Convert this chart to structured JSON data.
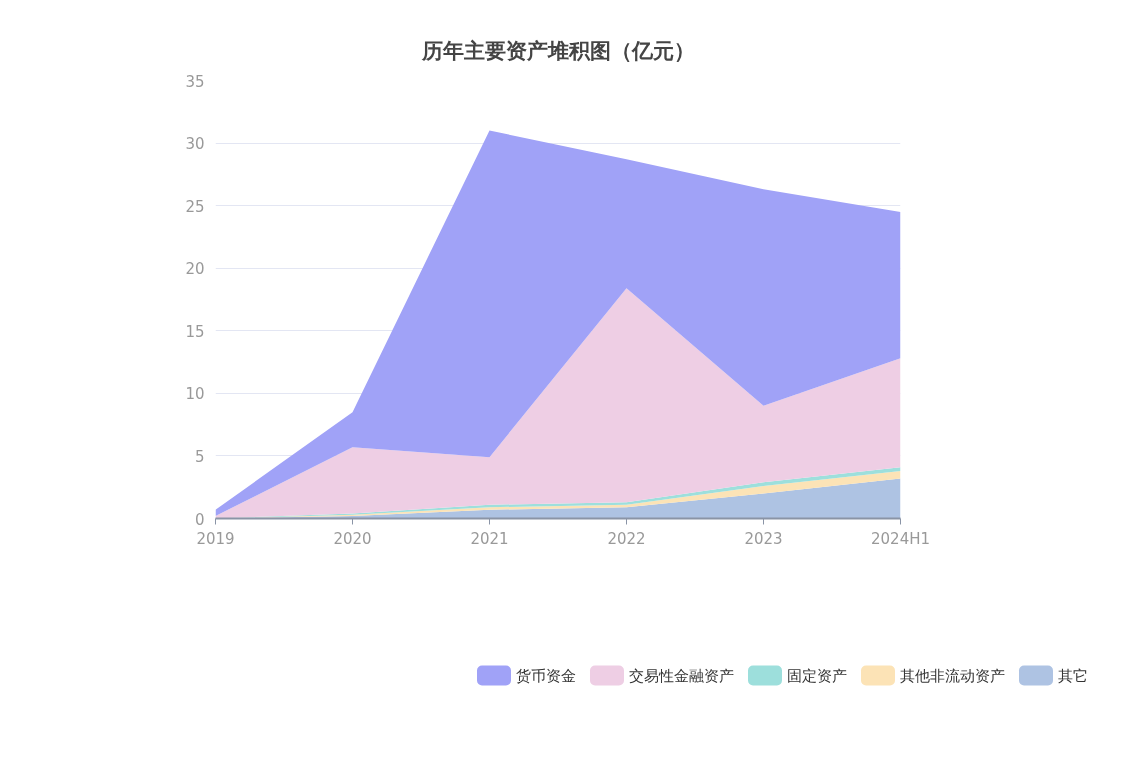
{
  "chart_data": {
    "type": "area",
    "stacked": true,
    "title": "历年主要资产堆积图（亿元）",
    "categories": [
      "2019",
      "2020",
      "2021",
      "2022",
      "2023",
      "2024H1"
    ],
    "series": [
      {
        "name": "其它",
        "color": "#aec3e3",
        "values": [
          0,
          0.2,
          0.7,
          0.9,
          2.0,
          3.2
        ]
      },
      {
        "name": "其他非流动资产",
        "color": "#fce3b6",
        "values": [
          0,
          0.1,
          0.2,
          0.2,
          0.6,
          0.6
        ]
      },
      {
        "name": "固定资产",
        "color": "#9ddfdc",
        "values": [
          0,
          0.1,
          0.2,
          0.2,
          0.3,
          0.3
        ]
      },
      {
        "name": "交易性金融资产",
        "color": "#eecee4",
        "values": [
          0.2,
          5.3,
          3.8,
          17.1,
          6.1,
          8.7
        ]
      },
      {
        "name": "货币资金",
        "color": "#a0a2f7",
        "values": [
          0.5,
          2.8,
          26.1,
          10.3,
          17.3,
          11.7
        ]
      }
    ],
    "ylim": [
      0,
      35
    ],
    "yticks": [
      0,
      5,
      10,
      15,
      20,
      25,
      30,
      35
    ],
    "grid": "y",
    "legend": "bottom"
  }
}
